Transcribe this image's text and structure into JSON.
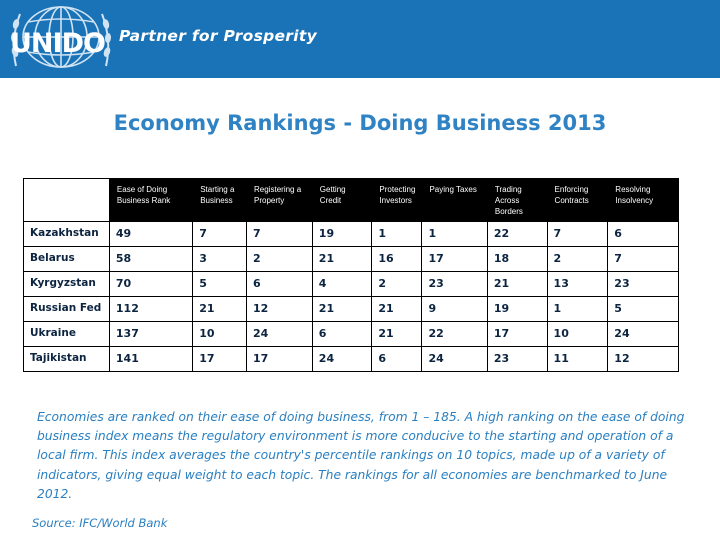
{
  "header": {
    "logo_text": "UNIDO",
    "tagline": "Partner for Prosperity"
  },
  "title": "Economy Rankings - Doing Business 2013",
  "table": {
    "columns": [
      "Ease of Doing Business Rank",
      "Starting a Business",
      "Registering a Property",
      "Getting Credit",
      "Protecting Investors",
      "Paying Taxes",
      "Trading Across Borders",
      "Enforcing Contracts",
      "Resolving Insolvency"
    ],
    "rows": [
      {
        "country": "Kazakhstan",
        "values": [
          "49",
          "7",
          "7",
          "19",
          "1",
          "1",
          "22",
          "7",
          "6"
        ]
      },
      {
        "country": "Belarus",
        "values": [
          "58",
          "3",
          "2",
          "21",
          "16",
          "17",
          "18",
          "2",
          "7"
        ]
      },
      {
        "country": "Kyrgyzstan",
        "values": [
          "70",
          "5",
          "6",
          "4",
          "2",
          "23",
          "21",
          "13",
          "23"
        ]
      },
      {
        "country": "Russian Fed",
        "values": [
          "112",
          "21",
          "12",
          "21",
          "21",
          "9",
          "19",
          "1",
          "5"
        ]
      },
      {
        "country": "Ukraine",
        "values": [
          "137",
          "10",
          "24",
          "6",
          "21",
          "22",
          "17",
          "10",
          "24"
        ]
      },
      {
        "country": "Tajikistan",
        "values": [
          "141",
          "17",
          "17",
          "24",
          "6",
          "24",
          "23",
          "11",
          "12"
        ]
      }
    ]
  },
  "note": "Economies are ranked on their ease of doing business, from 1 – 185. A high ranking on the ease of doing business index means the regulatory environment is more conducive to the starting and operation of a local firm. This index averages the country's percentile rankings on 10 topics, made up of a variety of indicators, giving equal weight to each topic. The rankings for all economies are benchmarked to June 2012.",
  "source": "Source: IFC/World Bank",
  "colors": {
    "header_bg": "#1a73b7",
    "title": "#2f82c3",
    "note": "#2a7fc0"
  },
  "icons": {
    "logo": "un-emblem-icon"
  }
}
